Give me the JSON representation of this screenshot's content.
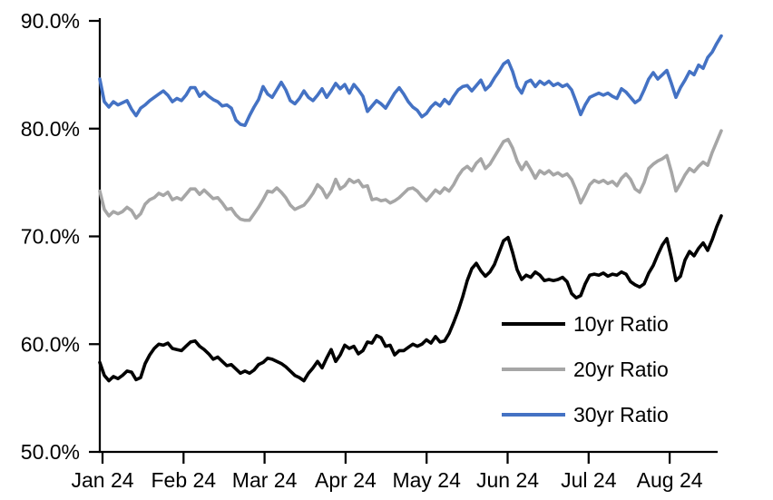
{
  "chart_data": {
    "type": "line",
    "title": "",
    "xlabel": "",
    "ylabel": "",
    "x_labels": [
      "Jan 24",
      "Feb 24",
      "Mar 24",
      "Apr 24",
      "May 24",
      "Jun 24",
      "Jul 24",
      "Aug 24"
    ],
    "y_tick_labels": [
      "90.0%",
      "80.0%",
      "70.0%",
      "60.0%",
      "50.0%"
    ],
    "y_tick_values": [
      90,
      80,
      70,
      60,
      50
    ],
    "ylim": [
      50,
      90
    ],
    "grid": false,
    "legend_position": "inside-lower-right",
    "axis_color": "#000000",
    "background_color": "#FFFFFF",
    "series": [
      {
        "name": "10yr Ratio",
        "color": "#000000",
        "values": [
          58.3,
          57.1,
          56.6,
          57.0,
          56.8,
          57.1,
          57.5,
          57.4,
          56.7,
          56.9,
          58.2,
          59.0,
          59.6,
          60.0,
          59.9,
          60.1,
          59.6,
          59.5,
          59.4,
          59.8,
          60.2,
          60.3,
          59.8,
          59.5,
          59.1,
          58.6,
          58.8,
          58.4,
          58.0,
          58.1,
          57.7,
          57.3,
          57.5,
          57.3,
          57.6,
          58.1,
          58.3,
          58.7,
          58.6,
          58.4,
          58.2,
          57.9,
          57.5,
          57.1,
          56.9,
          56.6,
          57.3,
          57.8,
          58.4,
          57.8,
          58.7,
          59.5,
          58.4,
          59.0,
          59.9,
          59.6,
          59.8,
          59.1,
          59.4,
          60.2,
          60.1,
          60.8,
          60.6,
          59.8,
          59.9,
          59.0,
          59.4,
          59.4,
          59.7,
          60.0,
          59.8,
          60.0,
          60.4,
          60.1,
          60.7,
          60.2,
          60.3,
          61.0,
          62.0,
          63.1,
          64.4,
          65.9,
          67.0,
          67.5,
          66.8,
          66.3,
          66.7,
          67.4,
          68.5,
          69.6,
          69.9,
          68.5,
          66.9,
          66.0,
          66.4,
          66.2,
          66.7,
          66.4,
          65.9,
          66.0,
          65.9,
          66.0,
          66.2,
          65.8,
          64.7,
          64.3,
          64.5,
          65.6,
          66.4,
          66.5,
          66.4,
          66.6,
          66.3,
          66.5,
          66.4,
          66.7,
          66.5,
          65.8,
          65.5,
          65.3,
          65.6,
          66.6,
          67.3,
          68.3,
          69.2,
          69.8,
          68.0,
          65.9,
          66.3,
          67.8,
          68.6,
          68.2,
          68.9,
          69.4,
          68.7,
          69.7,
          70.9,
          71.9
        ]
      },
      {
        "name": "20yr Ratio",
        "color": "#A6A6A6",
        "values": [
          74.2,
          72.5,
          71.9,
          72.3,
          72.1,
          72.3,
          72.7,
          72.4,
          71.7,
          72.1,
          73.0,
          73.4,
          73.6,
          74.0,
          73.8,
          74.1,
          73.4,
          73.6,
          73.4,
          73.9,
          74.4,
          74.4,
          73.9,
          74.3,
          73.9,
          73.5,
          73.6,
          73.1,
          72.5,
          72.6,
          72.0,
          71.6,
          71.5,
          71.5,
          72.1,
          72.7,
          73.4,
          74.2,
          74.1,
          74.5,
          74.1,
          73.6,
          72.9,
          72.5,
          72.7,
          72.9,
          73.4,
          74.0,
          74.8,
          74.4,
          73.6,
          74.2,
          75.3,
          74.4,
          74.7,
          75.3,
          75.0,
          75.2,
          74.6,
          74.7,
          73.4,
          73.5,
          73.3,
          73.4,
          73.1,
          73.3,
          73.6,
          74.0,
          74.4,
          74.5,
          74.2,
          73.7,
          73.3,
          73.8,
          74.3,
          74.0,
          74.5,
          74.2,
          74.8,
          75.6,
          76.2,
          76.5,
          76.1,
          76.8,
          77.2,
          76.3,
          76.7,
          77.4,
          78.1,
          78.8,
          79.0,
          78.2,
          77.0,
          76.2,
          76.9,
          76.2,
          75.4,
          76.1,
          75.8,
          76.1,
          75.7,
          75.9,
          75.6,
          75.8,
          75.3,
          74.3,
          73.1,
          73.9,
          74.8,
          75.2,
          75.0,
          75.2,
          74.9,
          75.1,
          74.7,
          75.4,
          75.8,
          75.3,
          74.4,
          74.1,
          75.0,
          76.3,
          76.7,
          77.0,
          77.2,
          77.5,
          76.0,
          74.2,
          74.9,
          75.7,
          76.3,
          76.0,
          76.5,
          76.9,
          76.6,
          77.8,
          78.8,
          79.8
        ]
      },
      {
        "name": "30yr Ratio",
        "color": "#4472C4",
        "values": [
          84.6,
          82.5,
          82.0,
          82.5,
          82.2,
          82.4,
          82.6,
          81.8,
          81.2,
          81.9,
          82.2,
          82.6,
          82.9,
          83.2,
          83.5,
          83.1,
          82.5,
          82.8,
          82.6,
          83.1,
          83.8,
          83.8,
          83.0,
          83.4,
          83.0,
          82.7,
          82.5,
          82.1,
          82.2,
          81.9,
          80.8,
          80.4,
          80.3,
          81.2,
          82.0,
          82.7,
          83.9,
          83.2,
          82.9,
          83.6,
          84.3,
          83.6,
          82.6,
          82.3,
          82.8,
          83.5,
          82.9,
          82.6,
          83.1,
          83.7,
          82.9,
          83.5,
          84.2,
          83.7,
          84.1,
          83.3,
          84.1,
          83.6,
          83.0,
          81.6,
          82.1,
          82.6,
          82.3,
          81.9,
          82.6,
          83.3,
          83.8,
          83.2,
          82.5,
          82.0,
          81.7,
          81.1,
          81.4,
          82.0,
          82.4,
          82.1,
          82.7,
          82.3,
          83.0,
          83.6,
          83.9,
          84.0,
          83.5,
          84.0,
          84.5,
          83.6,
          84.0,
          84.7,
          85.3,
          86.0,
          86.3,
          85.3,
          83.9,
          83.3,
          84.3,
          84.5,
          83.9,
          84.4,
          84.1,
          84.4,
          84.0,
          84.2,
          83.9,
          84.1,
          83.6,
          82.5,
          81.3,
          82.2,
          82.9,
          83.1,
          83.3,
          83.1,
          83.3,
          83.0,
          82.8,
          83.7,
          83.4,
          82.9,
          82.4,
          82.7,
          83.6,
          84.6,
          85.2,
          84.6,
          85.0,
          85.4,
          84.2,
          82.9,
          83.8,
          84.5,
          85.3,
          85.0,
          85.9,
          85.6,
          86.6,
          87.1,
          87.9,
          88.6
        ]
      }
    ]
  }
}
